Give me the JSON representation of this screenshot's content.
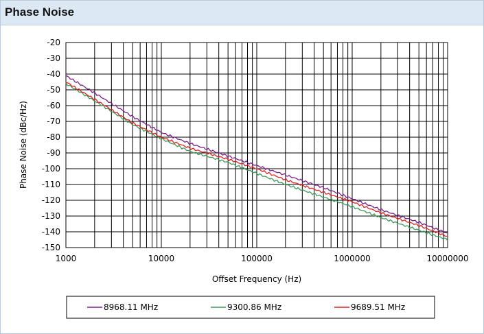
{
  "panel": {
    "title": "Phase Noise"
  },
  "chart_data": {
    "type": "line",
    "title": "",
    "xlabel": "Offset Frequency (Hz)",
    "ylabel": "Phase Noise (dBc/Hz)",
    "xscale": "log",
    "xlim": [
      1000,
      10000000
    ],
    "ylim": [
      -150,
      -20
    ],
    "x_ticks": [
      "1000",
      "10000",
      "100000",
      "1000000",
      "10000000"
    ],
    "y_ticks": [
      "-20",
      "-30",
      "-40",
      "-50",
      "-60",
      "-70",
      "-80",
      "-90",
      "-100",
      "-110",
      "-120",
      "-130",
      "-140",
      "-150"
    ],
    "grid": true,
    "legend_position": "bottom",
    "x": [
      1000,
      2000,
      5000,
      10000,
      20000,
      50000,
      100000,
      200000,
      500000,
      1000000,
      2000000,
      5000000,
      10000000
    ],
    "series": [
      {
        "name": "8968.11 MHz",
        "color": "#7b1f8c",
        "values": [
          -41,
          -52,
          -67,
          -77,
          -84,
          -92,
          -98,
          -104,
          -112,
          -119,
          -126,
          -134,
          -141
        ]
      },
      {
        "name": "9300.86 MHz",
        "color": "#3a9a5a",
        "values": [
          -46,
          -57,
          -72,
          -81,
          -89,
          -96,
          -103,
          -110,
          -118,
          -124,
          -131,
          -139,
          -145
        ]
      },
      {
        "name": "9689.51 MHz",
        "color": "#e02020",
        "values": [
          -45,
          -56,
          -71,
          -80,
          -87,
          -94,
          -100,
          -107,
          -115,
          -121,
          -128,
          -136,
          -143
        ]
      }
    ]
  }
}
